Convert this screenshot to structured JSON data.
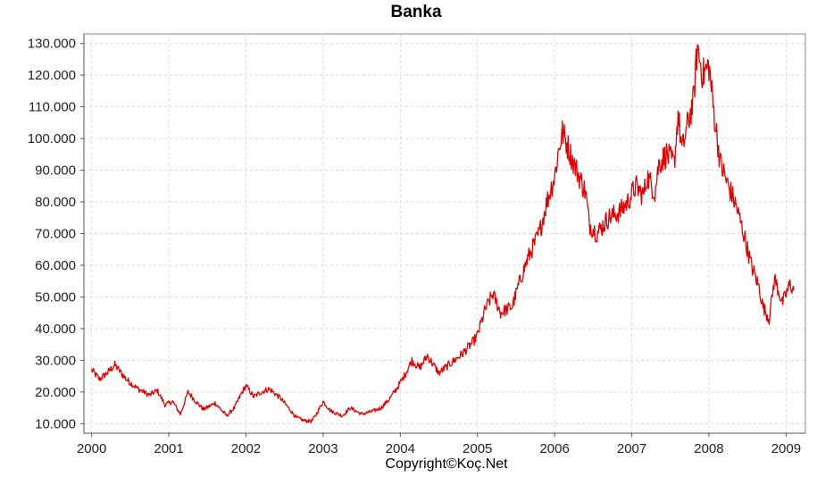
{
  "chart_data": {
    "type": "line",
    "title": "Banka",
    "xlabel": "",
    "ylabel": "",
    "footer": "Copyright©Koç.Net",
    "x_ticks": [
      "2000",
      "2001",
      "2002",
      "2003",
      "2004",
      "2005",
      "2006",
      "2007",
      "2008",
      "2009"
    ],
    "y_ticks": [
      "10.000",
      "20.000",
      "30.000",
      "40.000",
      "50.000",
      "60.000",
      "70.000",
      "80.000",
      "90.000",
      "100.000",
      "110.000",
      "120.000",
      "130.000"
    ],
    "xlim": [
      1999.9,
      2009.25
    ],
    "ylim": [
      7000,
      133000
    ],
    "grid": true,
    "legend": "none",
    "series_color": "#e60000",
    "series": [
      {
        "x": [
          2000.0,
          2000.1,
          2000.2,
          2000.3,
          2000.45,
          2000.6,
          2000.75,
          2000.85,
          2000.95,
          2001.05,
          2001.15,
          2001.25,
          2001.35,
          2001.45,
          2001.6,
          2001.75,
          2001.85,
          2001.95,
          2002.0,
          2002.1,
          2002.2,
          2002.3,
          2002.45,
          2002.55,
          2002.65,
          2002.75,
          2002.85,
          2002.9,
          2003.0,
          2003.1,
          2003.25,
          2003.35,
          2003.5,
          2003.65,
          2003.75,
          2003.85,
          2003.95,
          2004.05,
          2004.15,
          2004.25,
          2004.35,
          2004.5,
          2004.65,
          2004.8,
          2004.95,
          2005.0,
          2005.1,
          2005.2,
          2005.3,
          2005.45,
          2005.55,
          2005.65,
          2005.8,
          2005.9,
          2006.0,
          2006.05,
          2006.1,
          2006.15,
          2006.25,
          2006.32,
          2006.4,
          2006.45,
          2006.55,
          2006.7,
          2006.85,
          2006.95,
          2007.05,
          2007.15,
          2007.2,
          2007.3,
          2007.35,
          2007.45,
          2007.55,
          2007.6,
          2007.65,
          2007.72,
          2007.8,
          2007.85,
          2007.92,
          2008.0,
          2008.08,
          2008.15,
          2008.25,
          2008.35,
          2008.45,
          2008.55,
          2008.65,
          2008.7,
          2008.78,
          2008.85,
          2008.9,
          2008.95,
          2009.05,
          2009.1
        ],
        "y": [
          27000,
          24000,
          26000,
          28500,
          24000,
          21000,
          19000,
          20500,
          16000,
          17000,
          13000,
          20000,
          17000,
          14500,
          16500,
          12500,
          15000,
          20000,
          22000,
          18500,
          20000,
          21000,
          18000,
          15000,
          12000,
          11000,
          10800,
          12500,
          17000,
          14000,
          12500,
          15000,
          13000,
          14000,
          15000,
          17500,
          21000,
          25000,
          30000,
          27500,
          31500,
          26000,
          29000,
          32000,
          36000,
          38000,
          46000,
          51000,
          45000,
          47000,
          55000,
          62000,
          70000,
          80000,
          88000,
          96000,
          102000,
          99000,
          92000,
          88000,
          83000,
          73000,
          70000,
          75000,
          77000,
          80000,
          85000,
          82000,
          88000,
          83000,
          92000,
          95000,
          92000,
          108000,
          96000,
          104000,
          112000,
          129000,
          120000,
          123000,
          105000,
          92000,
          85000,
          79000,
          70000,
          60000,
          53000,
          47000,
          43000,
          56000,
          52000,
          48000,
          54000,
          52000
        ]
      }
    ]
  }
}
